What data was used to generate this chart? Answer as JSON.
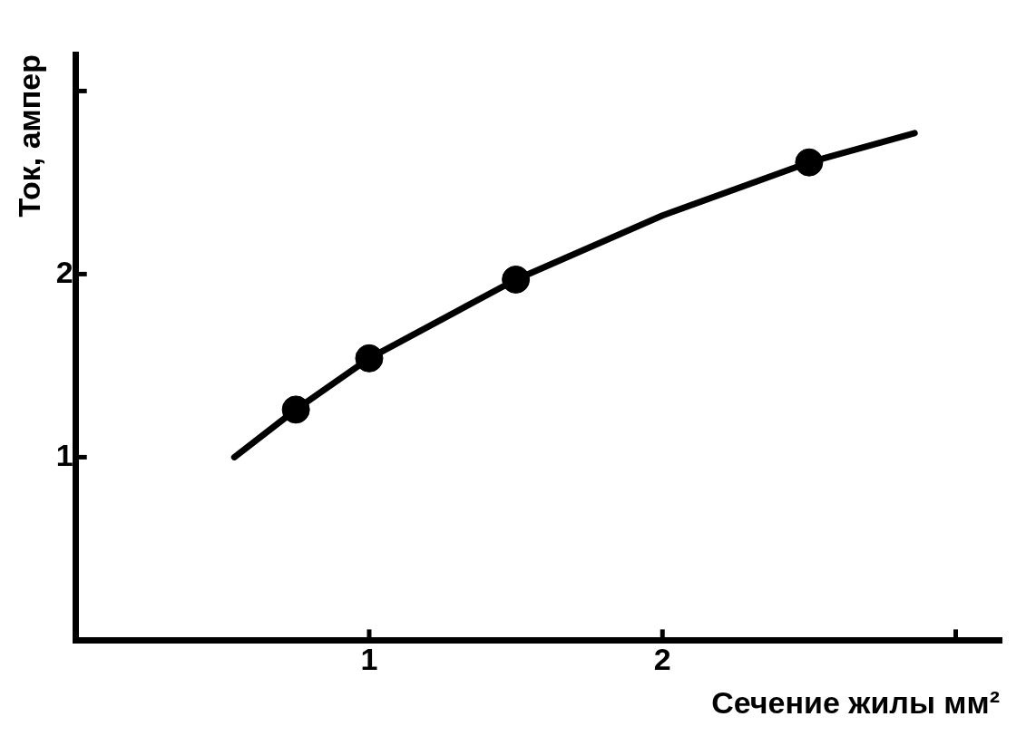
{
  "chart_data": {
    "type": "line",
    "xlabel": "Сечение жилы мм²",
    "ylabel": "Ток, ампер",
    "xlim": [
      0,
      3.15
    ],
    "ylim": [
      0,
      3.2
    ],
    "xticks": [
      1,
      2,
      {
        "value": 3,
        "label": null
      }
    ],
    "yticks": [
      1,
      2,
      {
        "value": 3,
        "label": null
      }
    ],
    "grid": false,
    "legend": false,
    "series": [
      {
        "color": "#000000",
        "marker": "none",
        "x": [
          0.54,
          0.75,
          1.0,
          1.5,
          2.0,
          2.5,
          2.86
        ],
        "values": [
          1.0,
          1.26,
          1.54,
          1.97,
          2.32,
          2.61,
          2.77
        ]
      },
      {
        "type": "scatter",
        "color": "#000000",
        "marker": "circle",
        "x": [
          0.75,
          1.0,
          1.5,
          2.5
        ],
        "values": [
          1.26,
          1.54,
          1.97,
          2.61
        ]
      }
    ]
  }
}
